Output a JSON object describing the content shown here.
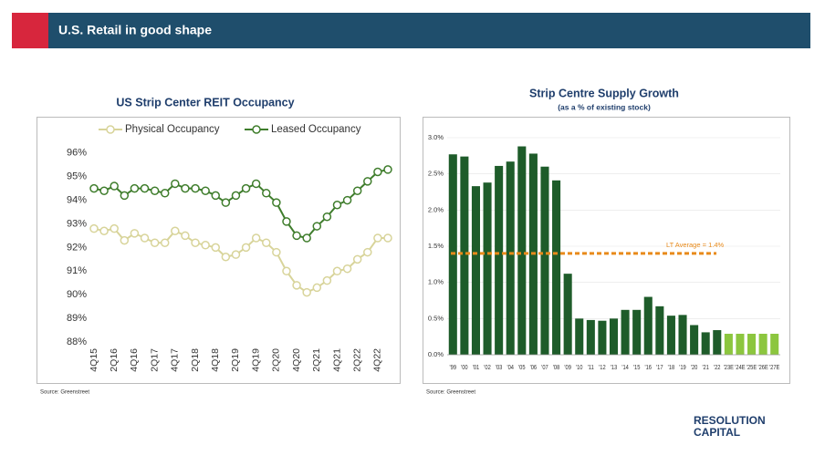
{
  "header": {
    "title": "U.S. Retail in good shape"
  },
  "chart_data": [
    {
      "type": "line",
      "title": "US Strip Center REIT Occupancy",
      "categories": [
        "4Q15",
        null,
        "2Q16",
        null,
        "4Q16",
        null,
        "2Q17",
        null,
        "4Q17",
        null,
        "2Q18",
        null,
        "4Q18",
        null,
        "2Q19",
        null,
        "4Q19",
        null,
        "2Q20",
        null,
        "4Q20",
        null,
        "2Q21",
        null,
        "4Q21",
        null,
        "2Q22",
        null,
        "4Q22",
        null
      ],
      "series": [
        {
          "name": "Physical Occupancy",
          "color": "#d8d49a",
          "values": [
            92.8,
            92.7,
            92.8,
            92.3,
            92.6,
            92.4,
            92.2,
            92.2,
            92.7,
            92.5,
            92.2,
            92.1,
            92.0,
            91.6,
            91.7,
            92.0,
            92.4,
            92.2,
            91.8,
            91.0,
            90.4,
            90.1,
            90.3,
            90.6,
            91.0,
            91.1,
            91.5,
            91.8,
            92.4,
            92.4
          ]
        },
        {
          "name": "Leased Occupancy",
          "color": "#3f7d2c",
          "values": [
            94.5,
            94.4,
            94.6,
            94.2,
            94.5,
            94.5,
            94.4,
            94.3,
            94.7,
            94.5,
            94.5,
            94.4,
            94.2,
            93.9,
            94.2,
            94.5,
            94.7,
            94.3,
            93.9,
            93.1,
            92.5,
            92.4,
            92.9,
            93.3,
            93.8,
            94.0,
            94.4,
            94.8,
            95.2,
            95.3
          ]
        }
      ],
      "ylim": [
        88,
        96.3
      ],
      "yticks": [
        {
          "value": 88,
          "label": "88%"
        },
        {
          "value": 89,
          "label": "89%"
        },
        {
          "value": 90,
          "label": "90%"
        },
        {
          "value": 91,
          "label": "91%"
        },
        {
          "value": 92,
          "label": "92%"
        },
        {
          "value": 93,
          "label": "93%"
        },
        {
          "value": 94,
          "label": "94%"
        },
        {
          "value": 95,
          "label": "95%"
        },
        {
          "value": 96,
          "label": "96%"
        }
      ],
      "legend": "top",
      "source": "Source: Greenstreet"
    },
    {
      "type": "bar",
      "title": "Strip Centre Supply Growth",
      "subtitle": "(as a % of existing stock)",
      "categories": [
        "'99",
        "'00",
        "'01",
        "'02",
        "'03",
        "'04",
        "'05",
        "'06",
        "'07",
        "'08",
        "'09",
        "'10",
        "'11",
        "'12",
        "'13",
        "'14",
        "'15",
        "'16",
        "'17",
        "'18",
        "'19",
        "'20",
        "'21",
        "'22",
        "'23E",
        "'24E",
        "'25E",
        "'26E",
        "'27E"
      ],
      "values": [
        2.77,
        2.74,
        2.33,
        2.38,
        2.61,
        2.67,
        2.88,
        2.78,
        2.6,
        2.41,
        1.12,
        0.5,
        0.48,
        0.47,
        0.5,
        0.62,
        0.62,
        0.8,
        0.67,
        0.54,
        0.55,
        0.41,
        0.31,
        0.34,
        0.29,
        0.29,
        0.29,
        0.29,
        0.29
      ],
      "colors": [
        "#1e5c2a",
        "#1e5c2a",
        "#1e5c2a",
        "#1e5c2a",
        "#1e5c2a",
        "#1e5c2a",
        "#1e5c2a",
        "#1e5c2a",
        "#1e5c2a",
        "#1e5c2a",
        "#1e5c2a",
        "#1e5c2a",
        "#1e5c2a",
        "#1e5c2a",
        "#1e5c2a",
        "#1e5c2a",
        "#1e5c2a",
        "#1e5c2a",
        "#1e5c2a",
        "#1e5c2a",
        "#1e5c2a",
        "#1e5c2a",
        "#1e5c2a",
        "#1e5c2a",
        "#8cc63f",
        "#8cc63f",
        "#8cc63f",
        "#8cc63f",
        "#8cc63f"
      ],
      "ylim": [
        0,
        3.0
      ],
      "yticks": [
        {
          "value": 0,
          "label": "0.0%"
        },
        {
          "value": 0.5,
          "label": "0.5%"
        },
        {
          "value": 1.0,
          "label": "1.0%"
        },
        {
          "value": 1.5,
          "label": "1.5%"
        },
        {
          "value": 2.0,
          "label": "2.0%"
        },
        {
          "value": 2.5,
          "label": "2.5%"
        },
        {
          "value": 3.0,
          "label": "3.0%"
        }
      ],
      "reference_line": {
        "value": 1.4,
        "label": "LT Average = 1.4%",
        "color": "#e88a1a"
      },
      "source": "Source: Greenstreet"
    }
  ],
  "logo": [
    "RESOLUTION",
    "CAPITAL"
  ]
}
